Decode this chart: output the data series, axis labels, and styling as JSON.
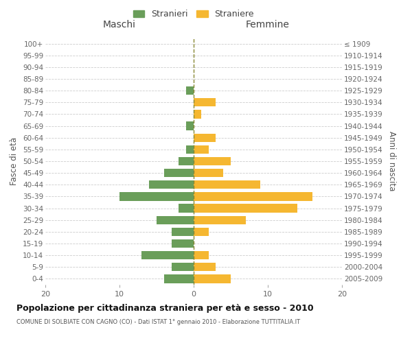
{
  "age_groups": [
    "0-4",
    "5-9",
    "10-14",
    "15-19",
    "20-24",
    "25-29",
    "30-34",
    "35-39",
    "40-44",
    "45-49",
    "50-54",
    "55-59",
    "60-64",
    "65-69",
    "70-74",
    "75-79",
    "80-84",
    "85-89",
    "90-94",
    "95-99",
    "100+"
  ],
  "birth_years": [
    "2005-2009",
    "2000-2004",
    "1995-1999",
    "1990-1994",
    "1985-1989",
    "1980-1984",
    "1975-1979",
    "1970-1974",
    "1965-1969",
    "1960-1964",
    "1955-1959",
    "1950-1954",
    "1945-1949",
    "1940-1944",
    "1935-1939",
    "1930-1934",
    "1925-1929",
    "1920-1924",
    "1915-1919",
    "1910-1914",
    "≤ 1909"
  ],
  "maschi": [
    4,
    3,
    7,
    3,
    3,
    5,
    2,
    10,
    6,
    4,
    2,
    1,
    0,
    1,
    0,
    0,
    1,
    0,
    0,
    0,
    0
  ],
  "femmine": [
    5,
    3,
    2,
    0,
    2,
    7,
    14,
    16,
    9,
    4,
    5,
    2,
    3,
    0,
    1,
    3,
    0,
    0,
    0,
    0,
    0
  ],
  "color_maschi": "#6a9e5a",
  "color_femmine": "#f5b731",
  "title": "Popolazione per cittadinanza straniera per età e sesso - 2010",
  "subtitle": "COMUNE DI SOLBIATE CON CAGNO (CO) - Dati ISTAT 1° gennaio 2010 - Elaborazione TUTTITALIA.IT",
  "ylabel_left": "Fasce di età",
  "ylabel_right": "Anni di nascita",
  "xlabel_maschi": "Maschi",
  "xlabel_femmine": "Femmine",
  "legend_maschi": "Stranieri",
  "legend_femmine": "Straniere",
  "xlim": 20,
  "background_color": "#ffffff",
  "grid_color": "#cccccc"
}
